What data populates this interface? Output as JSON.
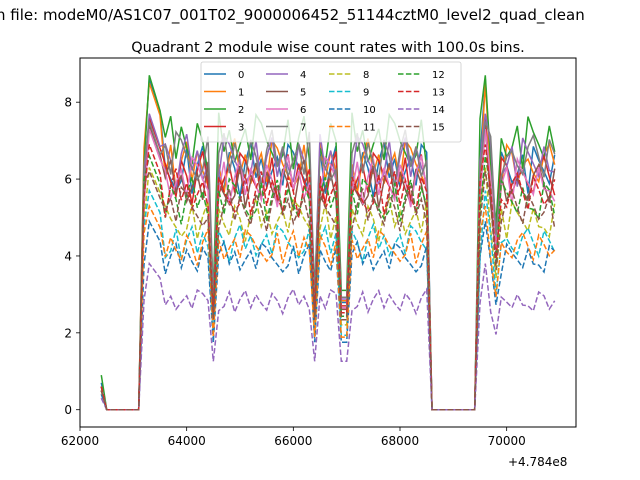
{
  "figure": {
    "suptitle": "n file: modeM0/AS1C07_001T02_9000006452_51144cztM0_level2_quad_clean",
    "title": "Quadrant 2 module wise count rates with 100.0s bins.",
    "offset_text": "+4.784e8"
  },
  "chart_data": {
    "type": "line",
    "title": "Quadrant 2 module wise count rates with 100.0s bins.",
    "xlabel": "",
    "ylabel": "",
    "x_offset": 478400000,
    "xlim": [
      62000,
      71300
    ],
    "ylim": [
      -0.45,
      9.15
    ],
    "xticks": [
      62000,
      64000,
      66000,
      68000,
      70000
    ],
    "xtick_labels": [
      "62000",
      "64000",
      "66000",
      "68000",
      "70000"
    ],
    "yticks": [
      0,
      2,
      4,
      6,
      8
    ],
    "ytick_labels": [
      "0",
      "2",
      "4",
      "6",
      "8"
    ],
    "grid": false,
    "legend": {
      "placement": "top-center",
      "columns": 4
    },
    "segments": [
      {
        "x_start": 62400,
        "x_end": 63200
      },
      {
        "x_start": 63200,
        "x_end": 68600
      },
      {
        "x_start": 68600,
        "x_end": 69500
      },
      {
        "x_start": 69500,
        "x_end": 70900
      }
    ],
    "series": [
      {
        "name": "0",
        "color": "#1f77b4",
        "dash": "solid",
        "level": 6.2,
        "peak": 8.6,
        "start_value": 0.7
      },
      {
        "name": "1",
        "color": "#ff7f0e",
        "dash": "solid",
        "level": 6.3,
        "peak": 8.5,
        "start_value": 0.6
      },
      {
        "name": "2",
        "color": "#2ca02c",
        "dash": "solid",
        "level": 6.9,
        "peak": 8.7,
        "start_value": 0.9
      },
      {
        "name": "3",
        "color": "#d62728",
        "dash": "solid",
        "level": 6.0,
        "peak": 7.6,
        "start_value": 0.6
      },
      {
        "name": "4",
        "color": "#9467bd",
        "dash": "solid",
        "level": 6.4,
        "peak": 7.7,
        "start_value": 0.6
      },
      {
        "name": "5",
        "color": "#8c564b",
        "dash": "solid",
        "level": 5.8,
        "peak": 7.4,
        "start_value": 0.6
      },
      {
        "name": "6",
        "color": "#e377c2",
        "dash": "solid",
        "level": 5.9,
        "peak": 7.3,
        "start_value": 0.6
      },
      {
        "name": "7",
        "color": "#7f7f7f",
        "dash": "solid",
        "level": 6.5,
        "peak": 7.5,
        "start_value": 0.6
      },
      {
        "name": "8",
        "color": "#bcbd22",
        "dash": "dashed",
        "level": 4.9,
        "peak": 6.3,
        "start_value": 0.5
      },
      {
        "name": "9",
        "color": "#17becf",
        "dash": "dashed",
        "level": 4.3,
        "peak": 5.7,
        "start_value": 0.5
      },
      {
        "name": "10",
        "color": "#1f77b4",
        "dash": "dashed",
        "level": 3.9,
        "peak": 4.9,
        "start_value": 0.4
      },
      {
        "name": "11",
        "color": "#ff7f0e",
        "dash": "dashed",
        "level": 4.2,
        "peak": 5.3,
        "start_value": 0.5
      },
      {
        "name": "12",
        "color": "#2ca02c",
        "dash": "dashed",
        "level": 5.4,
        "peak": 6.6,
        "start_value": 0.6
      },
      {
        "name": "13",
        "color": "#d62728",
        "dash": "dashed",
        "level": 5.6,
        "peak": 6.9,
        "start_value": 0.6
      },
      {
        "name": "14",
        "color": "#9467bd",
        "dash": "dashed",
        "level": 2.8,
        "peak": 3.8,
        "start_value": 0.3
      },
      {
        "name": "15",
        "color": "#8c564b",
        "dash": "dashed",
        "level": 5.2,
        "peak": 6.2,
        "start_value": 0.5
      }
    ]
  }
}
